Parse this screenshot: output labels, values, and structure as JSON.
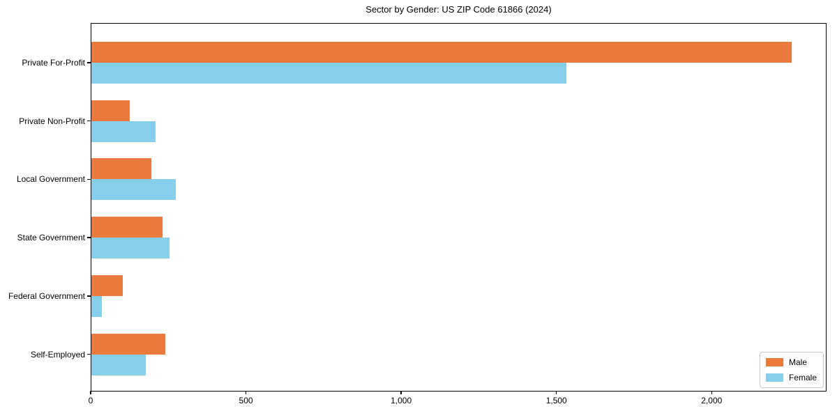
{
  "chart_data": {
    "type": "bar",
    "orientation": "horizontal",
    "title": "Sector by Gender: US ZIP Code 61866 (2024)",
    "categories": [
      "Private For-Profit",
      "Private Non-Profit",
      "Local Government",
      "State Government",
      "Federal Government",
      "Self-Employed"
    ],
    "series": [
      {
        "name": "Male",
        "color": "#e97a3b",
        "values": [
          2257,
          126,
          196,
          232,
          104,
          241
        ]
      },
      {
        "name": "Female",
        "color": "#87ceeb",
        "values": [
          1531,
          209,
          275,
          254,
          36,
          178
        ]
      }
    ],
    "xlabel": "",
    "ylabel": "",
    "xlim": [
      0,
      2370
    ],
    "xticks": {
      "values": [
        0,
        500,
        1000,
        1500,
        2000
      ],
      "labels": [
        "0",
        "500",
        "1,000",
        "1,500",
        "2,000"
      ]
    },
    "grid": false,
    "legend": {
      "position": "lower right"
    },
    "background_color": "#ffffff",
    "axis_color": "#000000"
  }
}
